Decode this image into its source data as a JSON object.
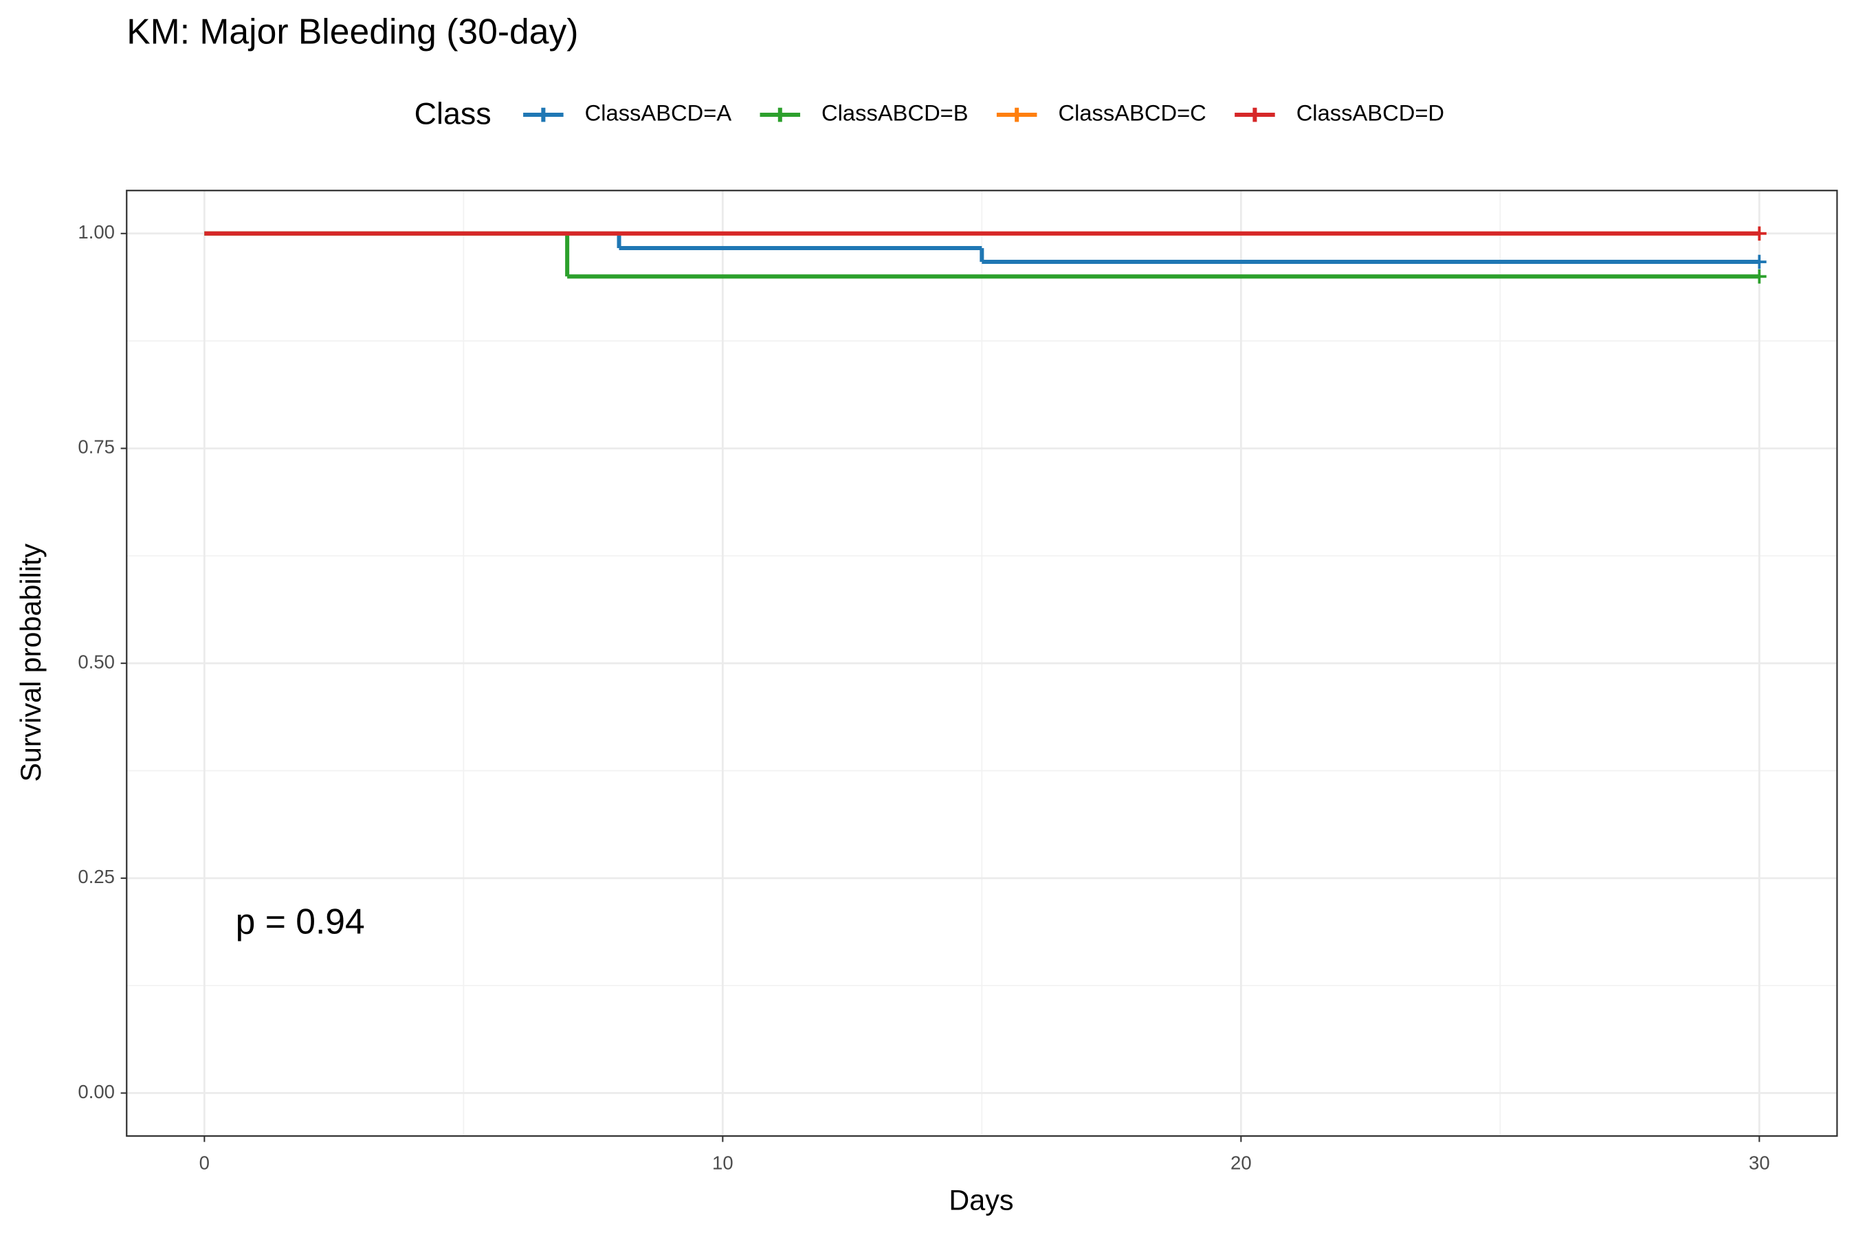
{
  "chart_data": {
    "type": "km",
    "title": "KM: Major Bleeding (30-day)",
    "legend_title": "Class",
    "x_label": "Days",
    "y_label": "Survival probability",
    "annotation": "p = 0.94",
    "series": [
      {
        "name": "ClassABCD=A",
        "color": "#1f77b4",
        "x": [
          0,
          8,
          15,
          30
        ],
        "values": [
          1,
          0.983,
          0.967,
          0.967
        ]
      },
      {
        "name": "ClassABCD=B",
        "color": "#2ca02c",
        "x": [
          0,
          7,
          30
        ],
        "values": [
          1,
          0.95,
          0.95
        ]
      },
      {
        "name": "ClassABCD=C",
        "color": "#ff7f0e",
        "x": [
          0,
          30
        ],
        "values": [
          1,
          1
        ]
      },
      {
        "name": "ClassABCD=D",
        "color": "#d62728",
        "x": [
          0,
          30
        ],
        "values": [
          1,
          1
        ]
      }
    ],
    "xlim": [
      -1.5,
      31.5
    ],
    "xticks": [
      0,
      10,
      20,
      30
    ],
    "ylim": [
      -0.05,
      1.05
    ],
    "yticks": [
      {
        "value": 0,
        "label": "0.00"
      },
      {
        "value": 0.25,
        "label": "0.25"
      },
      {
        "value": 0.5,
        "label": "0.50"
      },
      {
        "value": 0.75,
        "label": "0.75"
      },
      {
        "value": 1,
        "label": "1.00"
      }
    ],
    "grid": true,
    "legend": "top"
  }
}
